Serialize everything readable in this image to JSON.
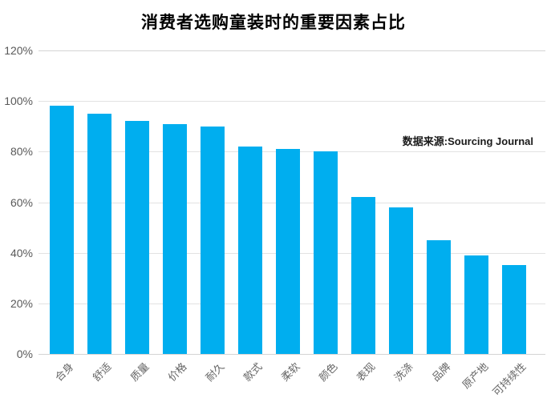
{
  "chart_data": {
    "type": "bar",
    "title": "消费者选购童装时的重要因素占比",
    "source_note": "数据来源:Sourcing Journal",
    "categories": [
      "合身",
      "舒适",
      "质量",
      "价格",
      "耐久",
      "款式",
      "柔软",
      "颜色",
      "表现",
      "洗涤",
      "品牌",
      "原产地",
      "可持续性"
    ],
    "values": [
      98,
      95,
      92,
      91,
      90,
      82,
      81,
      80,
      62,
      58,
      45,
      39,
      35
    ],
    "unit": "%",
    "xlabel": "",
    "ylabel": "",
    "ylim": [
      0,
      120
    ],
    "ytick_values": [
      0,
      20,
      40,
      60,
      80,
      100,
      120
    ],
    "ytick_labels": [
      "0%",
      "20%",
      "40%",
      "60%",
      "80%",
      "100%",
      "120%"
    ],
    "grid": "horizontal",
    "legend": "none",
    "bar_color": "#00AEEF",
    "grid_color": "#e2e2e2",
    "axis_label_color": "#595959",
    "title_color": "#000000"
  }
}
